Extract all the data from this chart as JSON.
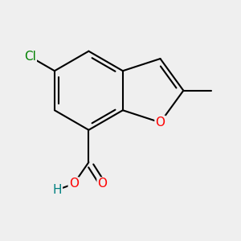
{
  "bg_color": "#efefef",
  "bond_color": "#000000",
  "bond_width": 1.5,
  "atom_labels": {
    "O_furan": {
      "text": "O",
      "color": "#ff0000",
      "fontsize": 11
    },
    "O_carbonyl": {
      "text": "O",
      "color": "#ff0000",
      "fontsize": 11
    },
    "O_hydroxyl": {
      "text": "O",
      "color": "#ff0000",
      "fontsize": 11
    },
    "H_hydroxyl": {
      "text": "H",
      "color": "#008080",
      "fontsize": 11
    },
    "Cl": {
      "text": "Cl",
      "color": "#008000",
      "fontsize": 11
    }
  },
  "figsize": [
    3.0,
    3.0
  ],
  "dpi": 100,
  "BL": 0.75
}
